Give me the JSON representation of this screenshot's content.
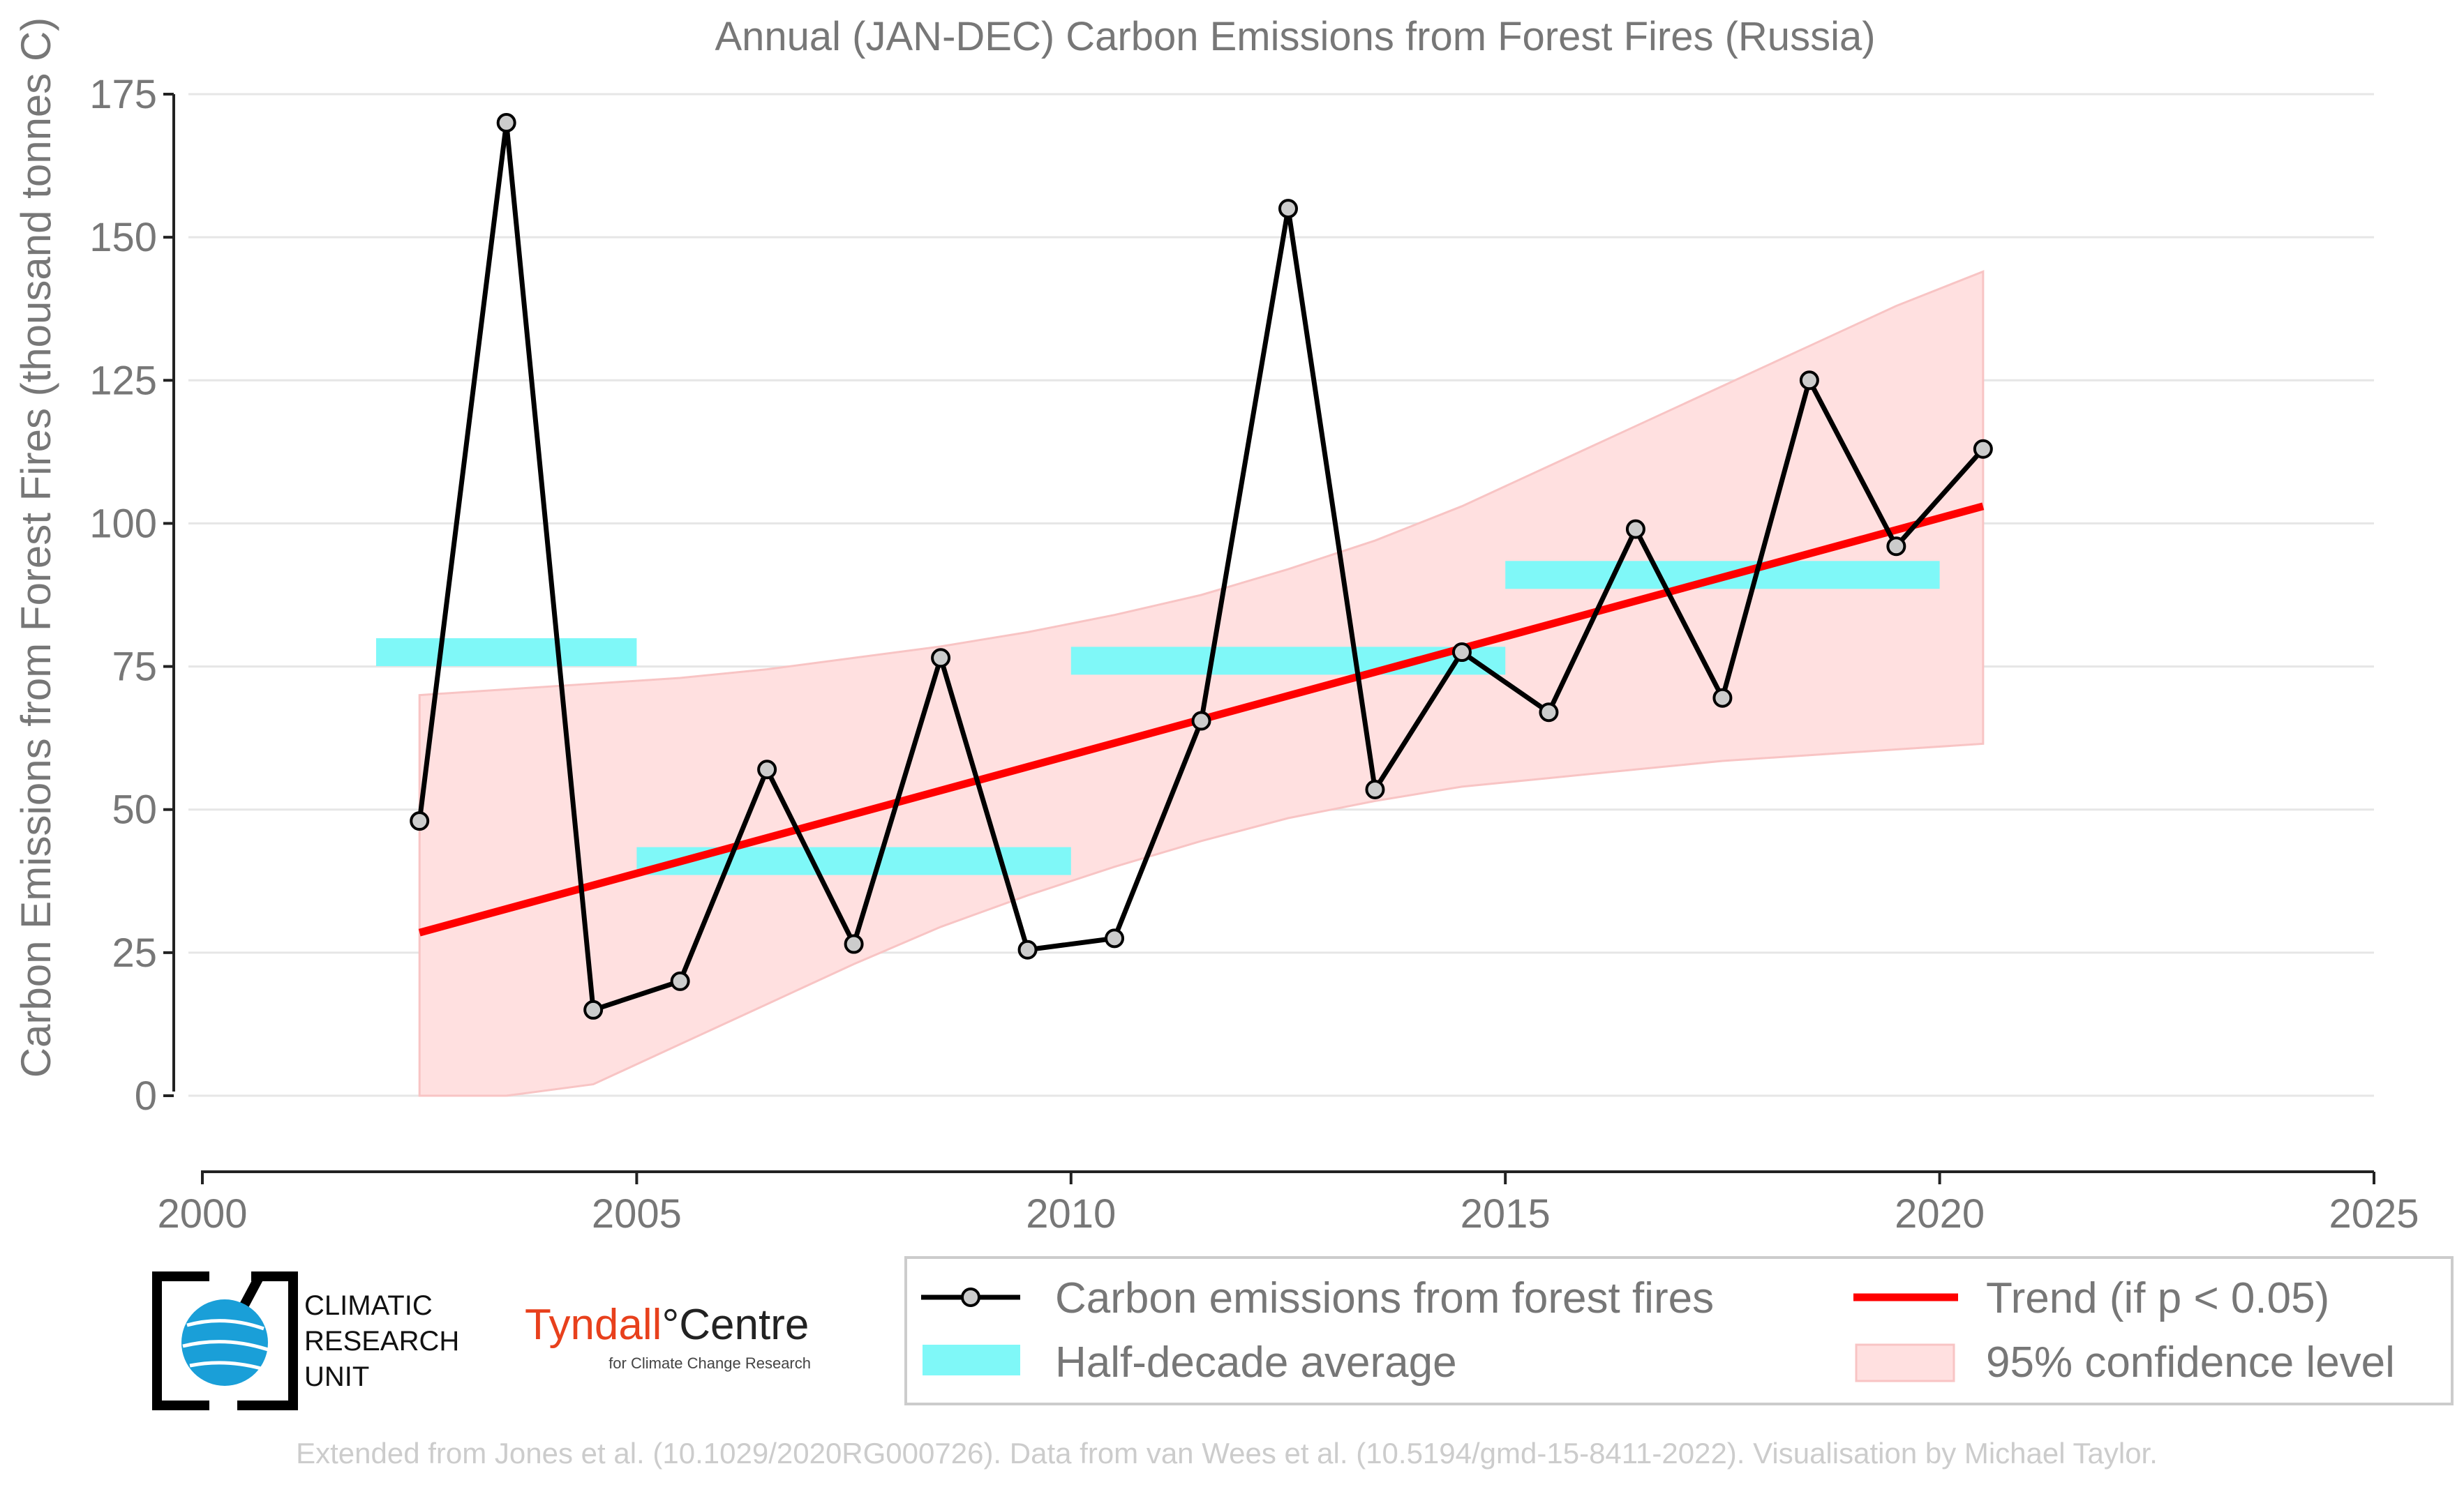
{
  "chart_data": {
    "type": "line",
    "title": "Annual (JAN-DEC) Carbon Emissions from Forest Fires (Russia)",
    "xlabel": "",
    "ylabel": "Carbon Emissions from Forest Fires (thousand tonnes C)",
    "xlim": [
      2000,
      2025
    ],
    "ylim": [
      -13,
      175
    ],
    "x_ticks": [
      2000,
      2005,
      2010,
      2015,
      2020,
      2025
    ],
    "y_ticks": [
      0,
      25,
      50,
      75,
      100,
      125,
      150,
      175
    ],
    "grid": "horizontal",
    "legend_position": "bottom",
    "colors": {
      "emissions": "#000000",
      "marker_fill": "#cccccc",
      "trend": "#ff0000",
      "half_decade": "#7ff8f8",
      "confidence": "#ffe0e0",
      "confidence_edge": "#f8c4c4",
      "grid": "#e6e6e6",
      "axis_text": "#777777"
    },
    "series": [
      {
        "name": "Carbon emissions from forest fires",
        "kind": "line_markers",
        "x": [
          2002.5,
          2003.5,
          2004.5,
          2005.5,
          2006.5,
          2007.5,
          2008.5,
          2009.5,
          2010.5,
          2011.5,
          2012.5,
          2013.5,
          2014.5,
          2015.5,
          2016.5,
          2017.5,
          2018.5,
          2019.5,
          2020.5
        ],
        "y": [
          48,
          170,
          15,
          20,
          57,
          26.5,
          76.5,
          25.5,
          27.5,
          65.5,
          155,
          53.5,
          77.5,
          67,
          99,
          69.5,
          125,
          96,
          113
        ]
      },
      {
        "name": "Trend (if p < 0.05)",
        "kind": "trend",
        "x": [
          2002.5,
          2020.5
        ],
        "y": [
          28.5,
          103
        ]
      },
      {
        "name": "Half-decade average",
        "kind": "bars",
        "segments": [
          {
            "x_start": 2002,
            "x_end": 2005,
            "y": 77.5
          },
          {
            "x_start": 2005,
            "x_end": 2010,
            "y": 41
          },
          {
            "x_start": 2010,
            "x_end": 2015,
            "y": 76
          },
          {
            "x_start": 2015,
            "x_end": 2020,
            "y": 91
          }
        ]
      },
      {
        "name": "95% confidence level",
        "kind": "band",
        "x": [
          2002.5,
          2003.5,
          2004.5,
          2005.5,
          2006.5,
          2007.5,
          2008.5,
          2009.5,
          2010.5,
          2011.5,
          2012.5,
          2013.5,
          2014.5,
          2015.5,
          2016.5,
          2017.5,
          2018.5,
          2019.5,
          2020.5
        ],
        "upper": [
          70,
          71,
          72,
          73,
          74.5,
          76.5,
          78.5,
          81,
          84,
          87.5,
          92,
          97,
          103,
          110,
          117,
          124,
          131,
          138,
          144
        ],
        "lower": [
          0,
          0,
          2,
          9,
          16,
          23,
          29.5,
          35,
          40,
          44.5,
          48.5,
          51.5,
          54,
          55.5,
          57,
          58.5,
          59.5,
          60.5,
          61.5
        ]
      }
    ]
  },
  "legend": {
    "items": [
      {
        "label": "Carbon emissions from forest fires"
      },
      {
        "label": "Trend (if p < 0.05)"
      },
      {
        "label": "Half-decade average"
      },
      {
        "label": "95% confidence level"
      }
    ]
  },
  "logos": {
    "cru": {
      "line1": "CLIMATIC",
      "line2": "RESEARCH",
      "line3": "UNIT"
    },
    "tyndall": {
      "name_part1": "Tyndall",
      "name_part2": "°Centre",
      "subtitle": "for Climate Change Research"
    }
  },
  "footer": {
    "credit": "Extended from Jones et al. (10.1029/2020RG000726). Data from van Wees et al. (10.5194/gmd-15-8411-2022). Visualisation by Michael Taylor."
  }
}
